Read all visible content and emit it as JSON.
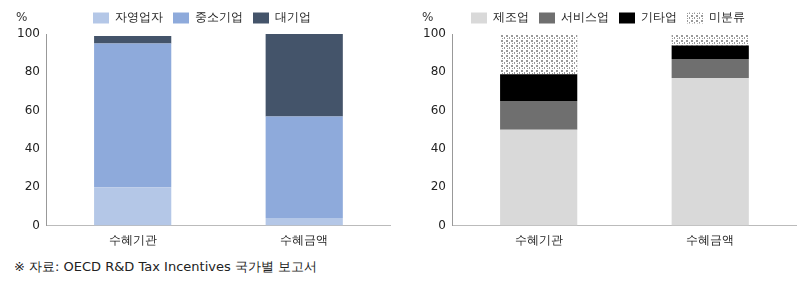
{
  "chart_data": [
    {
      "type": "bar",
      "stacked": true,
      "legend": "top",
      "grid": false,
      "y_label": "%",
      "categories": [
        "수혜기관",
        "수혜금액"
      ],
      "ylim": [
        0,
        100
      ],
      "yticks": [
        0,
        20,
        40,
        60,
        80,
        100
      ],
      "series": [
        {
          "name": "자영업자",
          "color": "#b4c7e7",
          "values": [
            20,
            4
          ]
        },
        {
          "name": "중소기업",
          "color": "#8eaadb",
          "values": [
            75,
            53
          ]
        },
        {
          "name": "대기업",
          "color": "#44546a",
          "values": [
            4,
            43
          ]
        }
      ]
    },
    {
      "type": "bar",
      "stacked": true,
      "legend": "top",
      "grid": false,
      "y_label": "%",
      "categories": [
        "수혜기관",
        "수혜금액"
      ],
      "ylim": [
        0,
        100
      ],
      "yticks": [
        0,
        20,
        40,
        60,
        80,
        100
      ],
      "series": [
        {
          "name": "제조업",
          "color": "#d9d9d9",
          "values": [
            50,
            77
          ]
        },
        {
          "name": "서비스업",
          "color": "#6f6f6f",
          "values": [
            15,
            10
          ]
        },
        {
          "name": "기타업",
          "color": "#000000",
          "values": [
            14,
            7
          ]
        },
        {
          "name": "미분류",
          "color": "#9a9a9a",
          "marker": "dots",
          "values": [
            21,
            6
          ]
        }
      ]
    }
  ],
  "source": "※ 자료: OECD R&D Tax Incentives 국가별 보고서"
}
